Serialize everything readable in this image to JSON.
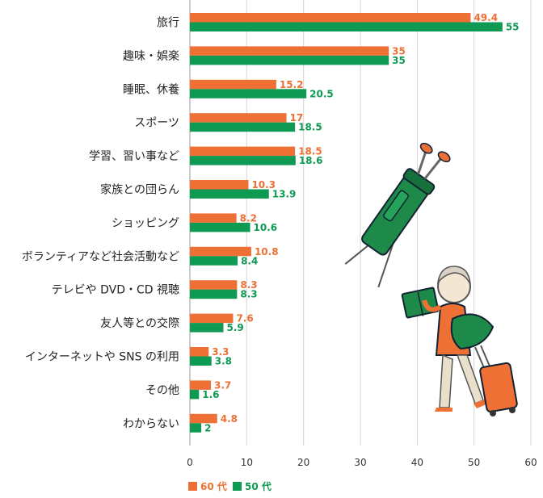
{
  "chart_data": {
    "type": "bar",
    "orientation": "horizontal",
    "categories": [
      "旅行",
      "趣味・娯楽",
      "睡眠、休養",
      "スポーツ",
      "学習、習い事など",
      "家族との団らん",
      "ショッピング",
      "ボランティアなど社会活動など",
      "テレビや DVD・CD 視聴",
      "友人等との交際",
      "インターネットや SNS の利用",
      "その他",
      "わからない"
    ],
    "series": [
      {
        "name": "60 代",
        "color": "#ee7034",
        "values": [
          49.4,
          35,
          15.2,
          17,
          18.5,
          10.3,
          8.2,
          10.8,
          8.3,
          7.6,
          3.3,
          3.7,
          4.8
        ],
        "labels": [
          "49.4",
          "35",
          "15.2",
          "17",
          "18.5",
          "10.3",
          "8.2",
          "10.8",
          "8.3",
          "7.6",
          "3.3",
          "3.7",
          "4.8"
        ]
      },
      {
        "name": "50 代",
        "color": "#0e9a52",
        "values": [
          55,
          35,
          20.5,
          18.5,
          18.6,
          13.9,
          10.6,
          8.4,
          8.3,
          5.9,
          3.8,
          1.6,
          2
        ],
        "labels": [
          "55",
          "35",
          "20.5",
          "18.5",
          "18.6",
          "13.9",
          "10.6",
          "8.4",
          "8.3",
          "5.9",
          "3.8",
          "1.6",
          "2"
        ]
      }
    ],
    "xlim": [
      0,
      60
    ],
    "xticks": [
      "0",
      "10",
      "20",
      "30",
      "40",
      "50",
      "60"
    ],
    "grid": true,
    "legend": "bottom-left"
  }
}
